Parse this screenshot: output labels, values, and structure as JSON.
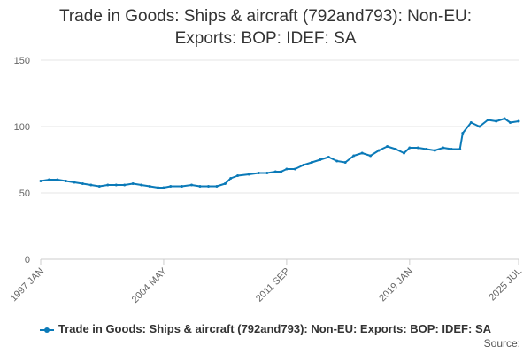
{
  "chart_data": {
    "type": "line",
    "title_lines": [
      "Trade in Goods: Ships & aircraft (792and793): Non-EU:",
      "Exports: BOP: IDEF: SA"
    ],
    "xlabel": "",
    "ylabel": "",
    "x_tick_labels": [
      "1997 JAN",
      "2004 MAY",
      "2011 SEP",
      "2019 JAN",
      "2025 JUL"
    ],
    "y_ticks": [
      0,
      50,
      100,
      150
    ],
    "ylim": [
      0,
      150
    ],
    "grid": true,
    "legend_position": "bottom",
    "series": [
      {
        "name": "Trade in Goods: Ships & aircraft (792and793): Non-EU: Exports: BOP: IDEF: SA",
        "color": "#0b7ab8",
        "points": [
          [
            "1997-01",
            59
          ],
          [
            "1997-07",
            60
          ],
          [
            "1998-01",
            60
          ],
          [
            "1998-07",
            59
          ],
          [
            "1999-01",
            58
          ],
          [
            "1999-07",
            57
          ],
          [
            "2000-01",
            56
          ],
          [
            "2000-07",
            55
          ],
          [
            "2001-01",
            56
          ],
          [
            "2001-07",
            56
          ],
          [
            "2002-01",
            56
          ],
          [
            "2002-07",
            57
          ],
          [
            "2003-01",
            56
          ],
          [
            "2003-07",
            55
          ],
          [
            "2004-01",
            54
          ],
          [
            "2004-05",
            54
          ],
          [
            "2004-10",
            55
          ],
          [
            "2005-06",
            55
          ],
          [
            "2006-01",
            56
          ],
          [
            "2006-07",
            55
          ],
          [
            "2007-01",
            55
          ],
          [
            "2007-07",
            55
          ],
          [
            "2008-01",
            57
          ],
          [
            "2008-05",
            61
          ],
          [
            "2008-10",
            63
          ],
          [
            "2009-06",
            64
          ],
          [
            "2010-01",
            65
          ],
          [
            "2010-07",
            65
          ],
          [
            "2011-01",
            66
          ],
          [
            "2011-05",
            66
          ],
          [
            "2011-09",
            68
          ],
          [
            "2012-03",
            68
          ],
          [
            "2012-09",
            71
          ],
          [
            "2013-03",
            73
          ],
          [
            "2013-09",
            75
          ],
          [
            "2014-03",
            77
          ],
          [
            "2014-09",
            74
          ],
          [
            "2015-03",
            73
          ],
          [
            "2015-09",
            78
          ],
          [
            "2016-03",
            80
          ],
          [
            "2016-09",
            78
          ],
          [
            "2017-03",
            82
          ],
          [
            "2017-09",
            85
          ],
          [
            "2018-03",
            83
          ],
          [
            "2018-09",
            80
          ],
          [
            "2019-01",
            84
          ],
          [
            "2019-07",
            84
          ],
          [
            "2020-01",
            83
          ],
          [
            "2020-07",
            82
          ],
          [
            "2021-01",
            84
          ],
          [
            "2021-07",
            83
          ],
          [
            "2022-01",
            83
          ],
          [
            "2022-03",
            95
          ],
          [
            "2022-09",
            103
          ],
          [
            "2023-03",
            100
          ],
          [
            "2023-09",
            105
          ],
          [
            "2024-03",
            104
          ],
          [
            "2024-09",
            106
          ],
          [
            "2025-01",
            103
          ],
          [
            "2025-07",
            104
          ]
        ]
      }
    ]
  },
  "footer": {
    "source_label": "Source:"
  }
}
